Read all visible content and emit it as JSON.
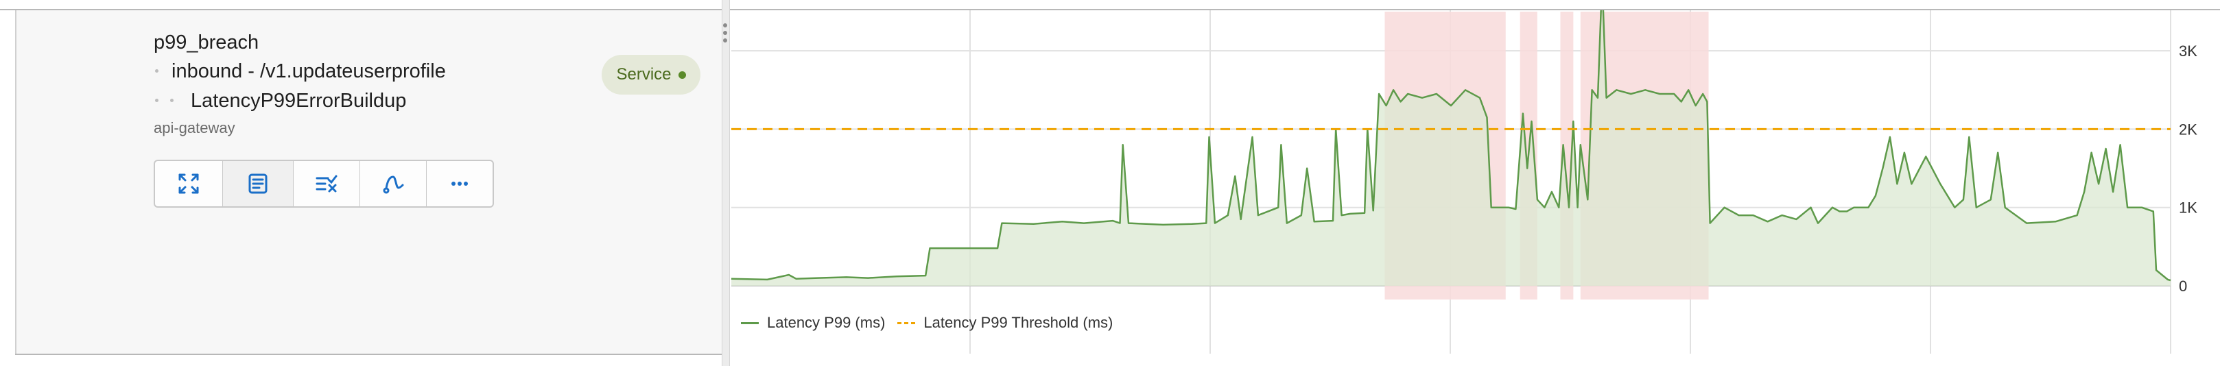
{
  "alert": {
    "name": "p99_breach",
    "route": "inbound - /v1.updateuserprofile",
    "detector": "LatencyP99ErrorBuildup",
    "service_name": "api-gateway",
    "badge_label": "Service",
    "badge_color": "#5b8a2a"
  },
  "toolbar": {
    "buttons": [
      {
        "icon": "expand-icon"
      },
      {
        "icon": "document-icon"
      },
      {
        "icon": "filter-check-icon"
      },
      {
        "icon": "curve-icon"
      },
      {
        "icon": "more-icon"
      }
    ]
  },
  "colors": {
    "series": "#5e9a4a",
    "fill": "#dbe8d2",
    "threshold": "#f0a400",
    "breach": "#f8dada"
  },
  "chart_data": {
    "type": "area",
    "title": "",
    "xlabel": "",
    "ylabel": "",
    "ylim": [
      0,
      3500
    ],
    "y_ticks": [
      "0",
      "1K",
      "2K",
      "3K"
    ],
    "y_tick_values": [
      0,
      1000,
      2000,
      3000
    ],
    "grid": true,
    "legend_position": "bottom-left",
    "x_range": [
      0,
      1000
    ],
    "series": [
      {
        "name": "Latency P99 (ms)",
        "style": "solid-area",
        "points": [
          [
            0,
            90
          ],
          [
            25,
            80
          ],
          [
            40,
            140
          ],
          [
            45,
            90
          ],
          [
            60,
            100
          ],
          [
            80,
            110
          ],
          [
            95,
            100
          ],
          [
            115,
            120
          ],
          [
            135,
            130
          ],
          [
            138,
            480
          ],
          [
            160,
            480
          ],
          [
            185,
            480
          ],
          [
            188,
            800
          ],
          [
            210,
            790
          ],
          [
            230,
            820
          ],
          [
            245,
            800
          ],
          [
            265,
            830
          ],
          [
            270,
            800
          ],
          [
            272,
            1800
          ],
          [
            276,
            800
          ],
          [
            300,
            780
          ],
          [
            320,
            790
          ],
          [
            330,
            800
          ],
          [
            332,
            1900
          ],
          [
            336,
            800
          ],
          [
            345,
            900
          ],
          [
            350,
            1400
          ],
          [
            354,
            850
          ],
          [
            362,
            1900
          ],
          [
            366,
            900
          ],
          [
            380,
            1000
          ],
          [
            382,
            1800
          ],
          [
            386,
            800
          ],
          [
            396,
            900
          ],
          [
            400,
            1500
          ],
          [
            405,
            820
          ],
          [
            418,
            830
          ],
          [
            420,
            2000
          ],
          [
            424,
            900
          ],
          [
            430,
            920
          ],
          [
            440,
            930
          ],
          [
            442,
            2000
          ],
          [
            446,
            960
          ],
          [
            450,
            2450
          ],
          [
            455,
            2300
          ],
          [
            460,
            2500
          ],
          [
            465,
            2350
          ],
          [
            470,
            2450
          ],
          [
            480,
            2400
          ],
          [
            490,
            2450
          ],
          [
            500,
            2300
          ],
          [
            510,
            2500
          ],
          [
            520,
            2400
          ],
          [
            525,
            2150
          ],
          [
            528,
            1000
          ],
          [
            540,
            1000
          ],
          [
            545,
            980
          ],
          [
            550,
            2200
          ],
          [
            553,
            1500
          ],
          [
            556,
            2100
          ],
          [
            560,
            1100
          ],
          [
            565,
            1000
          ],
          [
            570,
            1200
          ],
          [
            575,
            1000
          ],
          [
            578,
            1800
          ],
          [
            582,
            1000
          ],
          [
            585,
            2100
          ],
          [
            588,
            1000
          ],
          [
            590,
            1800
          ],
          [
            595,
            1100
          ],
          [
            598,
            2500
          ],
          [
            602,
            2400
          ],
          [
            605,
            3900
          ],
          [
            608,
            2400
          ],
          [
            615,
            2500
          ],
          [
            625,
            2450
          ],
          [
            635,
            2500
          ],
          [
            645,
            2450
          ],
          [
            655,
            2450
          ],
          [
            660,
            2350
          ],
          [
            665,
            2500
          ],
          [
            670,
            2300
          ],
          [
            675,
            2450
          ],
          [
            678,
            2350
          ],
          [
            680,
            800
          ],
          [
            690,
            1000
          ],
          [
            700,
            900
          ],
          [
            710,
            900
          ],
          [
            720,
            820
          ],
          [
            730,
            900
          ],
          [
            740,
            850
          ],
          [
            750,
            1000
          ],
          [
            755,
            800
          ],
          [
            765,
            1000
          ],
          [
            770,
            950
          ],
          [
            775,
            950
          ],
          [
            780,
            1000
          ],
          [
            790,
            1000
          ],
          [
            795,
            1150
          ],
          [
            800,
            1500
          ],
          [
            805,
            1900
          ],
          [
            810,
            1300
          ],
          [
            815,
            1700
          ],
          [
            820,
            1300
          ],
          [
            830,
            1650
          ],
          [
            840,
            1300
          ],
          [
            850,
            1000
          ],
          [
            856,
            1100
          ],
          [
            860,
            1900
          ],
          [
            865,
            1000
          ],
          [
            875,
            1100
          ],
          [
            880,
            1700
          ],
          [
            885,
            1000
          ],
          [
            900,
            800
          ],
          [
            920,
            820
          ],
          [
            935,
            900
          ],
          [
            940,
            1200
          ],
          [
            945,
            1700
          ],
          [
            950,
            1300
          ],
          [
            955,
            1750
          ],
          [
            960,
            1200
          ],
          [
            965,
            1800
          ],
          [
            970,
            1000
          ],
          [
            980,
            1000
          ],
          [
            988,
            950
          ],
          [
            990,
            200
          ],
          [
            998,
            80
          ],
          [
            1000,
            70
          ]
        ]
      },
      {
        "name": "Latency P99 Threshold (ms)",
        "style": "dashed",
        "value": 2000
      }
    ],
    "breach_windows": [
      [
        454,
        538
      ],
      [
        548,
        560
      ],
      [
        576,
        585
      ],
      [
        590,
        679
      ]
    ]
  },
  "legend": {
    "items": [
      {
        "label": "Latency P99 (ms)"
      },
      {
        "label": "Latency P99 Threshold (ms)"
      }
    ]
  }
}
